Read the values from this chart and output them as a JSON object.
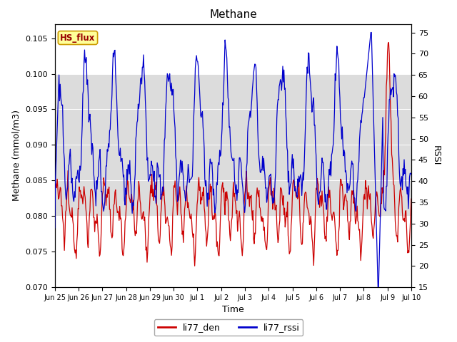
{
  "title": "Methane",
  "ylabel_left": "Methane (mmol/m3)",
  "ylabel_right": "RSSI",
  "xlabel": "Time",
  "ylim_left": [
    0.07,
    0.107
  ],
  "ylim_right": [
    15,
    77
  ],
  "yticks_left": [
    0.07,
    0.075,
    0.08,
    0.085,
    0.09,
    0.095,
    0.1,
    0.105
  ],
  "yticks_right": [
    15,
    20,
    25,
    30,
    35,
    40,
    45,
    50,
    55,
    60,
    65,
    70,
    75
  ],
  "shade_ylim": [
    0.08,
    0.1
  ],
  "hs_flux_label": "HS_flux",
  "line_red_label": "li77_den",
  "line_blue_label": "li77_rssi",
  "line_red_color": "#cc0000",
  "line_blue_color": "#0000cc",
  "background_color": "#ffffff",
  "shade_color": "#dcdcdc",
  "hs_flux_bg": "#ffff99",
  "hs_flux_border": "#cc9900",
  "hs_flux_text_color": "#990000",
  "title_fontsize": 11,
  "axis_label_fontsize": 9,
  "tick_fontsize": 8
}
